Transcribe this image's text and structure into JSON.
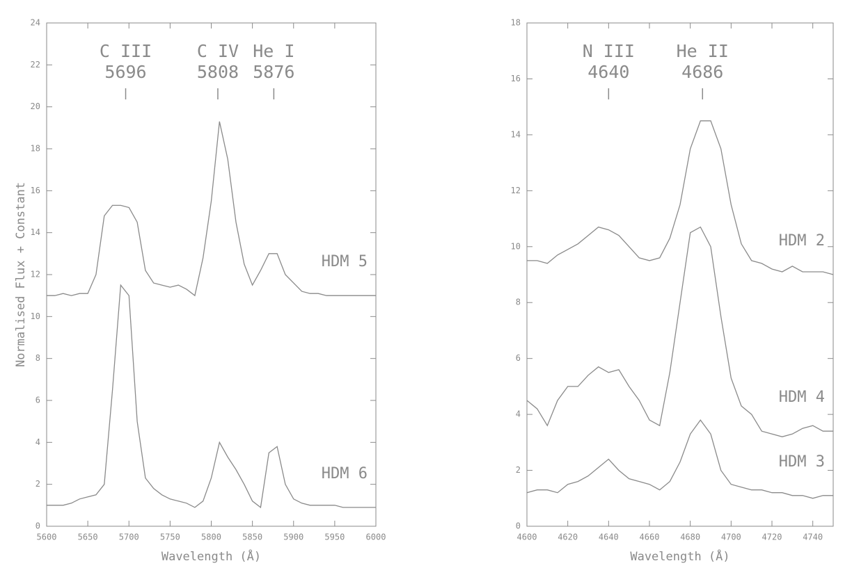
{
  "chart_data": [
    {
      "type": "line",
      "ylabel": "Normalised Flux + Constant",
      "xlabel": "Wavelength (Å)",
      "xlim": [
        5600,
        6000
      ],
      "xticks": [
        5600,
        5650,
        5700,
        5750,
        5800,
        5850,
        5900,
        5950,
        6000
      ],
      "ylim": [
        0,
        24
      ],
      "yticks": [
        0,
        2,
        4,
        6,
        8,
        10,
        12,
        14,
        16,
        18,
        20,
        22,
        24
      ],
      "annotations": [
        {
          "label": "C III",
          "value": 5696
        },
        {
          "label": "C IV",
          "value": 5808
        },
        {
          "label": "He I",
          "value": 5876
        }
      ],
      "x": [
        5600,
        5610,
        5620,
        5630,
        5640,
        5650,
        5660,
        5670,
        5680,
        5690,
        5700,
        5710,
        5720,
        5730,
        5740,
        5750,
        5760,
        5770,
        5780,
        5790,
        5800,
        5810,
        5820,
        5830,
        5840,
        5850,
        5860,
        5870,
        5880,
        5890,
        5900,
        5910,
        5920,
        5930,
        5940,
        5950,
        5960,
        5970,
        5980,
        5990,
        6000
      ],
      "series": [
        {
          "name": "HDM 5",
          "color": "#8a8a8a",
          "values": [
            11.0,
            11.0,
            11.1,
            11.0,
            11.1,
            11.1,
            12.0,
            14.8,
            15.3,
            15.3,
            15.2,
            14.5,
            12.2,
            11.6,
            11.5,
            11.4,
            11.5,
            11.3,
            11.0,
            12.8,
            15.5,
            19.3,
            17.5,
            14.5,
            12.5,
            11.5,
            12.2,
            13.0,
            13.0,
            12.0,
            11.6,
            11.2,
            11.1,
            11.1,
            11.0,
            11.0,
            11.0,
            11.0,
            11.0,
            11.0,
            11.0
          ]
        },
        {
          "name": "HDM 6",
          "color": "#8a8a8a",
          "values": [
            1.0,
            1.0,
            1.0,
            1.1,
            1.3,
            1.4,
            1.5,
            2.0,
            6.5,
            11.5,
            11.0,
            5.0,
            2.3,
            1.8,
            1.5,
            1.3,
            1.2,
            1.1,
            0.9,
            1.2,
            2.3,
            4.0,
            3.3,
            2.7,
            2.0,
            1.2,
            0.9,
            3.5,
            3.8,
            2.0,
            1.3,
            1.1,
            1.0,
            1.0,
            1.0,
            1.0,
            0.9,
            0.9,
            0.9,
            0.9,
            0.9
          ]
        }
      ]
    },
    {
      "type": "line",
      "xlabel": "Wavelength (Å)",
      "xlim": [
        4600,
        4750
      ],
      "xticks": [
        4600,
        4620,
        4640,
        4660,
        4680,
        4700,
        4720,
        4740
      ],
      "ylim": [
        0,
        18
      ],
      "yticks": [
        0,
        2,
        4,
        6,
        8,
        10,
        12,
        14,
        16,
        18
      ],
      "annotations": [
        {
          "label": "N III",
          "value": 4640
        },
        {
          "label": "He II",
          "value": 4686
        }
      ],
      "x": [
        4600,
        4605,
        4610,
        4615,
        4620,
        4625,
        4630,
        4635,
        4640,
        4645,
        4650,
        4655,
        4660,
        4665,
        4670,
        4675,
        4680,
        4685,
        4690,
        4695,
        4700,
        4705,
        4710,
        4715,
        4720,
        4725,
        4730,
        4735,
        4740,
        4745,
        4750
      ],
      "series": [
        {
          "name": "HDM 2",
          "color": "#8a8a8a",
          "values": [
            9.5,
            9.5,
            9.4,
            9.7,
            9.9,
            10.1,
            10.4,
            10.7,
            10.6,
            10.4,
            10.0,
            9.6,
            9.5,
            9.6,
            10.3,
            11.5,
            13.5,
            14.5,
            14.5,
            13.5,
            11.5,
            10.1,
            9.5,
            9.4,
            9.2,
            9.1,
            9.3,
            9.1,
            9.1,
            9.1,
            9.0
          ]
        },
        {
          "name": "HDM 4",
          "color": "#8a8a8a",
          "values": [
            4.5,
            4.2,
            3.6,
            4.5,
            5.0,
            5.0,
            5.4,
            5.7,
            5.5,
            5.6,
            5.0,
            4.5,
            3.8,
            3.6,
            5.5,
            8.0,
            10.5,
            10.7,
            10.0,
            7.5,
            5.3,
            4.3,
            4.0,
            3.4,
            3.3,
            3.2,
            3.3,
            3.5,
            3.6,
            3.4,
            3.4
          ]
        },
        {
          "name": "HDM 3",
          "color": "#8a8a8a",
          "values": [
            1.2,
            1.3,
            1.3,
            1.2,
            1.5,
            1.6,
            1.8,
            2.1,
            2.4,
            2.0,
            1.7,
            1.6,
            1.5,
            1.3,
            1.6,
            2.3,
            3.3,
            3.8,
            3.3,
            2.0,
            1.5,
            1.4,
            1.3,
            1.3,
            1.2,
            1.2,
            1.1,
            1.1,
            1.0,
            1.1,
            1.1
          ]
        }
      ]
    }
  ]
}
